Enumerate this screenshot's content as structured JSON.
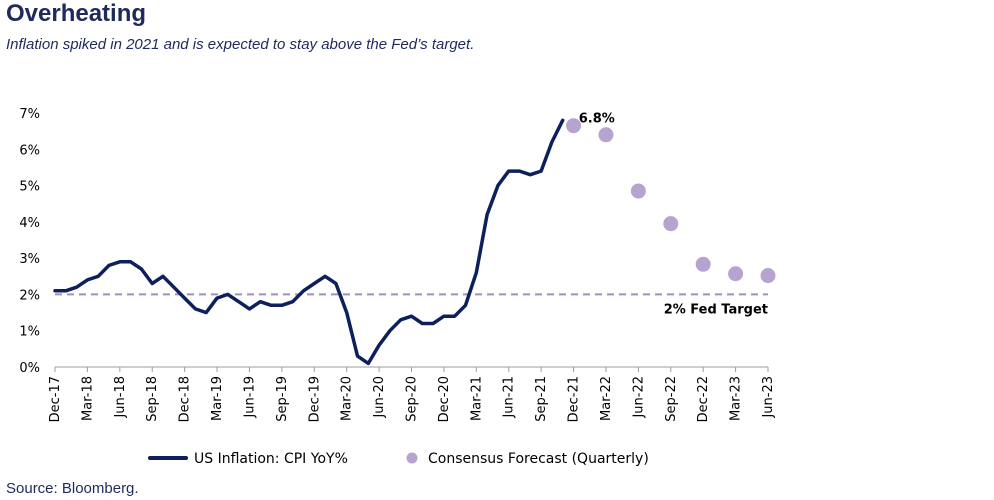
{
  "title": "Overheating",
  "subtitle": "Inflation spiked in 2021 and is expected to stay above the Fed’s target.",
  "source": "Source: Bloomberg.",
  "colors": {
    "line": "#0d1f5c",
    "forecast": "#b7a3cf",
    "target": "#a08cc6",
    "text": "#1f2a5c"
  },
  "chart_data": {
    "type": "line",
    "y_tick_labels": [
      "0%",
      "1%",
      "2%",
      "3%",
      "4%",
      "5%",
      "6%",
      "7%"
    ],
    "ylim": [
      0,
      7
    ],
    "x_tick_labels": [
      "Dec-17",
      "Mar-18",
      "Jun-18",
      "Sep-18",
      "Dec-18",
      "Mar-19",
      "Jun-19",
      "Sep-19",
      "Dec-19",
      "Mar-20",
      "Jun-20",
      "Sep-20",
      "Dec-20",
      "Mar-21",
      "Jun-21",
      "Sep-21",
      "Dec-21",
      "Mar-22",
      "Jun-22",
      "Sep-22",
      "Dec-22",
      "Mar-23",
      "Jun-23"
    ],
    "series": [
      {
        "name": "US Inflation: CPI YoY%",
        "kind": "line",
        "x": [
          "2017-12",
          "2018-01",
          "2018-02",
          "2018-03",
          "2018-04",
          "2018-05",
          "2018-06",
          "2018-07",
          "2018-08",
          "2018-09",
          "2018-10",
          "2018-11",
          "2018-12",
          "2019-01",
          "2019-02",
          "2019-03",
          "2019-04",
          "2019-05",
          "2019-06",
          "2019-07",
          "2019-08",
          "2019-09",
          "2019-10",
          "2019-11",
          "2019-12",
          "2020-01",
          "2020-02",
          "2020-03",
          "2020-04",
          "2020-05",
          "2020-06",
          "2020-07",
          "2020-08",
          "2020-09",
          "2020-10",
          "2020-11",
          "2020-12",
          "2021-01",
          "2021-02",
          "2021-03",
          "2021-04",
          "2021-05",
          "2021-06",
          "2021-07",
          "2021-08",
          "2021-09",
          "2021-10",
          "2021-11"
        ],
        "values": [
          2.1,
          2.1,
          2.2,
          2.4,
          2.5,
          2.8,
          2.9,
          2.9,
          2.7,
          2.3,
          2.5,
          2.2,
          1.9,
          1.6,
          1.5,
          1.9,
          2.0,
          1.8,
          1.6,
          1.8,
          1.7,
          1.7,
          1.8,
          2.1,
          2.3,
          2.5,
          2.3,
          1.5,
          0.3,
          0.1,
          0.6,
          1.0,
          1.3,
          1.4,
          1.2,
          1.2,
          1.4,
          1.4,
          1.7,
          2.6,
          4.2,
          5.0,
          5.4,
          5.4,
          5.3,
          5.4,
          6.2,
          6.8
        ]
      },
      {
        "name": "Consensus Forecast (Quarterly)",
        "kind": "scatter",
        "x": [
          "2021-12",
          "2022-03",
          "2022-06",
          "2022-09",
          "2022-12",
          "2023-03",
          "2023-06"
        ],
        "values": [
          6.65,
          6.4,
          4.85,
          3.95,
          2.83,
          2.57,
          2.52
        ]
      }
    ],
    "reference_line": {
      "value": 2.0,
      "label": "2% Fed Target",
      "style": "dashed"
    },
    "annotations": [
      {
        "x": "2021-11",
        "text": "6.8%"
      }
    ],
    "legend_position": "bottom"
  }
}
